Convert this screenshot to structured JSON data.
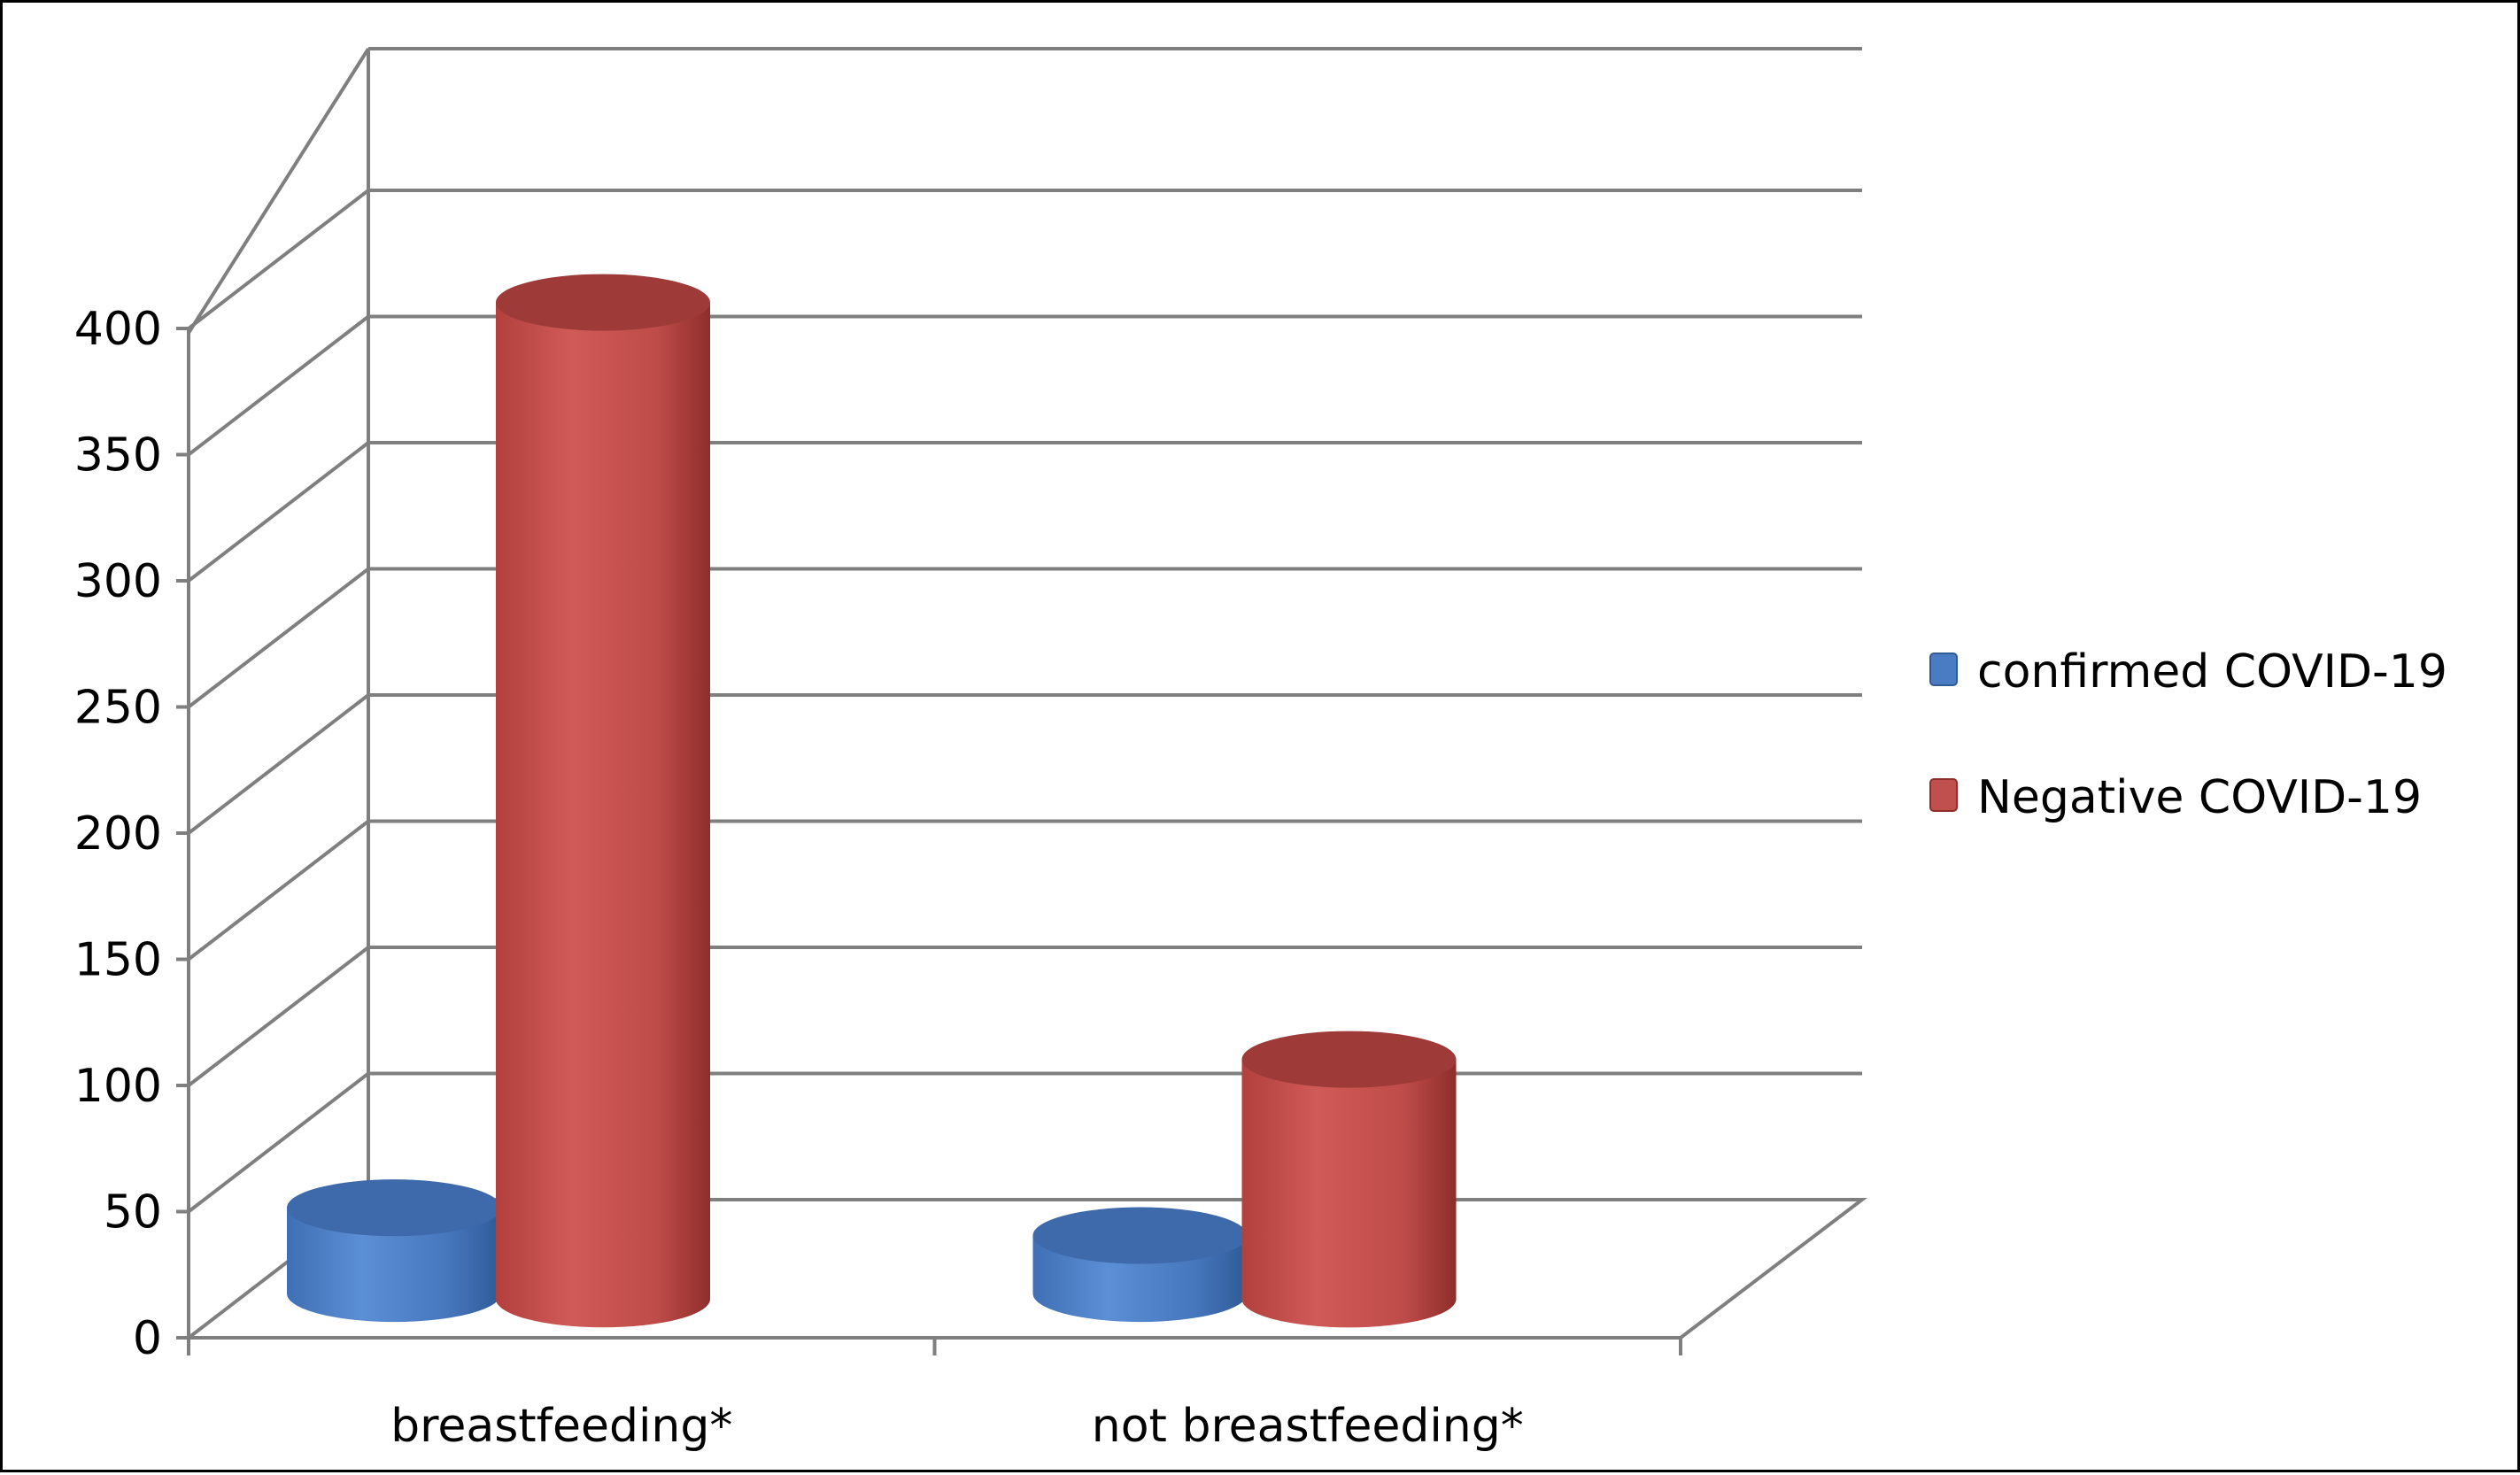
{
  "chart_data": {
    "type": "bar",
    "style": "3d-cylinder",
    "categories": [
      "breastfeeding*",
      "not breastfeeding*"
    ],
    "series": [
      {
        "name": "confirmed COVID-19",
        "color": "#4a7cc4",
        "values": [
          34,
          23
        ]
      },
      {
        "name": "Negative COVID-19",
        "color": "#c0504d",
        "values": [
          395,
          95
        ]
      }
    ],
    "ylim": [
      0,
      400
    ],
    "yticks": [
      0,
      50,
      100,
      150,
      200,
      250,
      300,
      350,
      400
    ],
    "grid": true,
    "legend_position": "right",
    "title": "",
    "xlabel": "",
    "ylabel": ""
  }
}
